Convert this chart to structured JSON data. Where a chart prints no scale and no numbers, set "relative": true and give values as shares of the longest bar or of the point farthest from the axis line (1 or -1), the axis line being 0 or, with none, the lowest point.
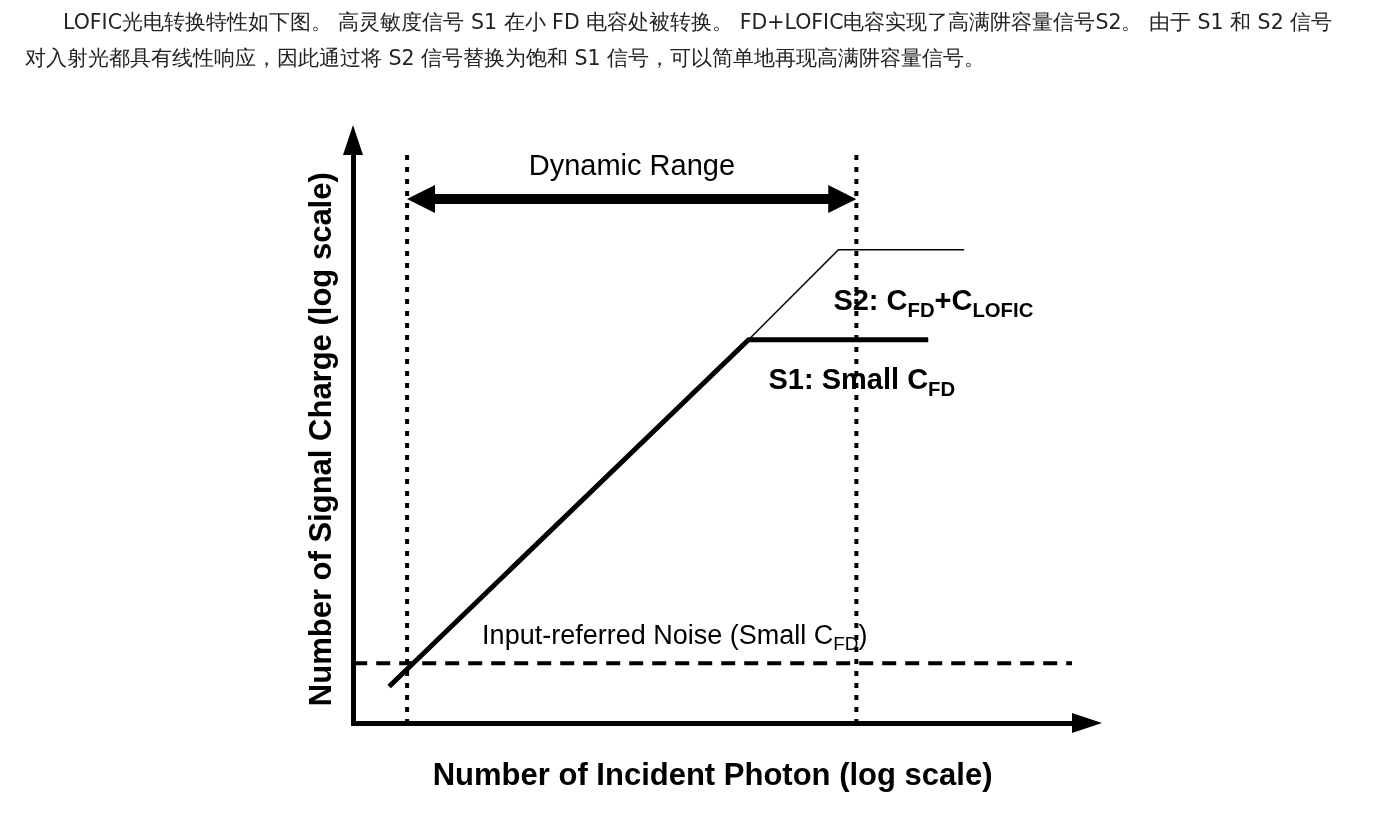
{
  "chart_data": {
    "type": "line",
    "relative": true,
    "title": "LOFIC光电转换特性如下图。 高灵敏度信号 S1 在小 FD 电容处被转换。 FD+LOFIC电容实现了高满阱容量信号S2。 由于 S1 和 S2 信号对入射光都具有线性响应，因此通过将 S2 信号替换为饱和 S1 信号，可以简单地再现高满阱容量信号。",
    "xlabel": "Number of Incident Photon (log scale)",
    "ylabel": "Number of Signal Charge (log scale)",
    "categories": [
      null,
      null,
      null,
      null,
      null,
      null,
      null,
      null,
      null,
      null,
      null,
      null,
      null,
      null,
      null,
      null,
      null,
      null,
      null,
      null,
      null,
      null,
      null,
      null,
      null,
      null,
      null,
      null,
      null,
      null,
      null,
      null,
      null,
      null,
      null,
      null,
      null,
      null,
      null,
      null,
      null
    ],
    "grid": false,
    "legend": false,
    "marker": "none",
    "series": [
      {
        "name": "S1: Small C$_{FD}$",
        "color": "#000000",
        "values": [
          null,
          null,
          0.078,
          null,
          null,
          null,
          null,
          null,
          null,
          null,
          null,
          null,
          null,
          null,
          null,
          null,
          null,
          null,
          null,
          null,
          null,
          null,
          0.81,
          null,
          null,
          null,
          null,
          null,
          null,
          null,
          null,
          null,
          0.81,
          null,
          null,
          null,
          null,
          null,
          null,
          null,
          null
        ]
      },
      {
        "name": "S2: C$_{FD}$+C$_{LOFIC}$",
        "color": "#000000",
        "values": [
          null,
          null,
          null,
          null,
          null,
          null,
          null,
          null,
          null,
          null,
          null,
          null,
          null,
          null,
          null,
          null,
          null,
          null,
          null,
          null,
          null,
          null,
          0.81,
          null,
          null,
          null,
          null,
          1,
          null,
          null,
          null,
          null,
          null,
          null,
          1,
          null,
          null,
          null,
          null,
          null,
          null
        ]
      }
    ],
    "ref_lines": [
      {
        "axis": "y",
        "value": 0.127,
        "label": "Input-referred Noise (Small C$_{FD}$)",
        "line_style": "dashed",
        "color": "#000000"
      }
    ],
    "annotations": [
      "Dynamic Range"
    ]
  }
}
